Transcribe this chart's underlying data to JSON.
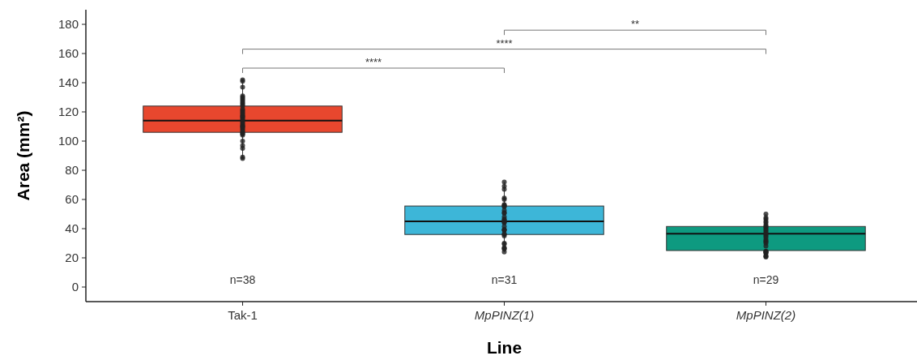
{
  "chart_data": {
    "type": "box",
    "categories": [
      "Tak-1",
      "MpPINZ(1)",
      "MpPINZ(2)"
    ],
    "xlabel": "Line",
    "ylabel": "Area (mm²)",
    "ylim": [
      -10,
      190
    ],
    "yticks": [
      0,
      20,
      40,
      60,
      80,
      100,
      120,
      140,
      160,
      180
    ],
    "grid": false,
    "series": [
      {
        "colors": [
          "#e8472e",
          "#3db6d8",
          "#0e9a80"
        ],
        "boxes": [
          {
            "low": 88,
            "q1": 106,
            "median": 114,
            "q3": 124,
            "high": 142
          },
          {
            "low": 24,
            "q1": 36,
            "median": 45,
            "q3": 55.5,
            "high": 72
          },
          {
            "low": 20.5,
            "q1": 25,
            "median": 36.5,
            "q3": 41.5,
            "high": 50
          }
        ]
      },
      {
        "type": "scatter",
        "color": "#222222",
        "marker": "circle",
        "x": [
          "Tak-1",
          "Tak-1",
          "Tak-1",
          "Tak-1",
          "Tak-1",
          "Tak-1",
          "Tak-1",
          "Tak-1",
          "Tak-1",
          "Tak-1",
          "Tak-1",
          "Tak-1",
          "Tak-1",
          "Tak-1",
          "Tak-1",
          "Tak-1",
          "Tak-1",
          "Tak-1",
          "Tak-1",
          "Tak-1",
          "Tak-1",
          "Tak-1",
          "Tak-1",
          "Tak-1",
          "Tak-1",
          "Tak-1",
          "Tak-1",
          "Tak-1",
          "Tak-1",
          "Tak-1",
          "Tak-1",
          "Tak-1",
          "Tak-1",
          "Tak-1",
          "Tak-1",
          "Tak-1",
          "Tak-1",
          "Tak-1",
          "MpPINZ(1)",
          "MpPINZ(1)",
          "MpPINZ(1)",
          "MpPINZ(1)",
          "MpPINZ(1)",
          "MpPINZ(1)",
          "MpPINZ(1)",
          "MpPINZ(1)",
          "MpPINZ(1)",
          "MpPINZ(1)",
          "MpPINZ(1)",
          "MpPINZ(1)",
          "MpPINZ(1)",
          "MpPINZ(1)",
          "MpPINZ(1)",
          "MpPINZ(1)",
          "MpPINZ(1)",
          "MpPINZ(1)",
          "MpPINZ(1)",
          "MpPINZ(1)",
          "MpPINZ(1)",
          "MpPINZ(1)",
          "MpPINZ(1)",
          "MpPINZ(1)",
          "MpPINZ(1)",
          "MpPINZ(1)",
          "MpPINZ(1)",
          "MpPINZ(1)",
          "MpPINZ(1)",
          "MpPINZ(1)",
          "MpPINZ(1)",
          "MpPINZ(2)",
          "MpPINZ(2)",
          "MpPINZ(2)",
          "MpPINZ(2)",
          "MpPINZ(2)",
          "MpPINZ(2)",
          "MpPINZ(2)",
          "MpPINZ(2)",
          "MpPINZ(2)",
          "MpPINZ(2)",
          "MpPINZ(2)",
          "MpPINZ(2)",
          "MpPINZ(2)",
          "MpPINZ(2)",
          "MpPINZ(2)",
          "MpPINZ(2)",
          "MpPINZ(2)",
          "MpPINZ(2)",
          "MpPINZ(2)",
          "MpPINZ(2)",
          "MpPINZ(2)",
          "MpPINZ(2)",
          "MpPINZ(2)",
          "MpPINZ(2)",
          "MpPINZ(2)",
          "MpPINZ(2)",
          "MpPINZ(2)",
          "MpPINZ(2)",
          "MpPINZ(2)"
        ],
        "values": [
          142,
          141,
          137,
          131,
          130,
          129,
          128,
          127,
          126,
          125,
          124,
          122,
          121,
          120,
          119,
          118,
          117,
          117,
          116,
          115,
          114,
          113,
          112,
          111,
          110,
          110,
          109,
          108,
          107,
          106,
          105,
          105,
          104,
          100,
          97,
          95,
          89,
          88,
          72,
          69,
          67,
          61,
          60,
          56.5,
          56,
          55.5,
          55,
          52.5,
          51,
          50.5,
          48,
          46.5,
          46,
          45,
          44.5,
          44,
          41.5,
          39.5,
          39,
          39,
          36.5,
          36,
          35,
          30,
          29.5,
          27,
          26.5,
          26,
          24,
          50,
          47.5,
          46.5,
          45,
          44,
          42.5,
          41.5,
          41,
          40,
          39,
          38,
          37,
          36,
          35,
          34,
          32.5,
          31.5,
          31,
          30,
          28,
          24.5,
          24.5,
          24,
          24,
          23.5,
          23,
          21.5,
          21,
          20.5
        ]
      }
    ],
    "annotations": [
      "n=38",
      "n=31",
      "n=29",
      "****",
      "****",
      "**"
    ]
  }
}
